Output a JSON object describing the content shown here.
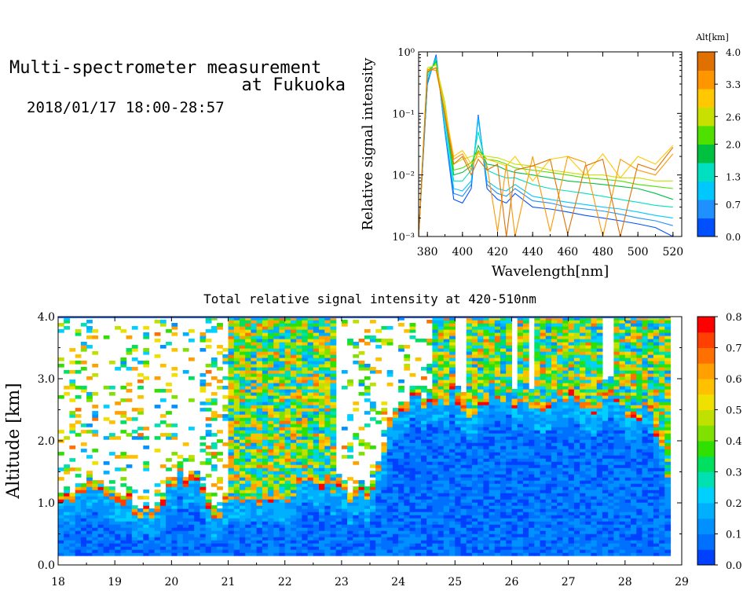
{
  "header": {
    "title_line1": "Multi-spectrometer measurement",
    "title_line2": "at Fukuoka",
    "date_range": "2018/01/17 18:00-28:57"
  },
  "chart_data": [
    {
      "type": "line",
      "xlabel": "Wavelength[nm]",
      "ylabel": "Relative signal intensity",
      "xlim": [
        375,
        525
      ],
      "x_ticks": [
        "380",
        "400",
        "420",
        "440",
        "460",
        "480",
        "500",
        "520"
      ],
      "y_scale": "log",
      "ylim": [
        0.001,
        1
      ],
      "y_ticks": [
        "10⁻³",
        "10⁻²",
        "10⁻¹",
        "10⁰"
      ],
      "x": [
        375,
        380,
        385,
        390,
        395,
        400,
        405,
        409,
        414,
        420,
        425,
        430,
        440,
        450,
        460,
        470,
        480,
        490,
        500,
        510,
        520
      ],
      "series": [
        {
          "alt": 0.2,
          "color": "#0050ff",
          "values": [
            0.001,
            0.3,
            0.9,
            0.05,
            0.004,
            0.0035,
            0.006,
            0.095,
            0.006,
            0.004,
            0.0035,
            0.005,
            0.003,
            0.0028,
            0.0025,
            0.0022,
            0.002,
            0.0018,
            0.0016,
            0.0014,
            0.001
          ]
        },
        {
          "alt": 0.5,
          "color": "#1e90ff",
          "values": [
            0.001,
            0.32,
            0.85,
            0.05,
            0.005,
            0.0045,
            0.007,
            0.09,
            0.007,
            0.005,
            0.0045,
            0.006,
            0.0038,
            0.0035,
            0.003,
            0.0028,
            0.0026,
            0.0023,
            0.002,
            0.0018,
            0.0015
          ]
        },
        {
          "alt": 0.9,
          "color": "#00c8ff",
          "values": [
            0.001,
            0.35,
            0.8,
            0.06,
            0.006,
            0.0055,
            0.008,
            0.08,
            0.008,
            0.006,
            0.0055,
            0.007,
            0.0045,
            0.004,
            0.0036,
            0.0033,
            0.003,
            0.0028,
            0.0025,
            0.0022,
            0.002
          ]
        },
        {
          "alt": 1.4,
          "color": "#00e0c0",
          "values": [
            0.001,
            0.4,
            0.75,
            0.08,
            0.008,
            0.008,
            0.012,
            0.05,
            0.012,
            0.01,
            0.009,
            0.009,
            0.007,
            0.006,
            0.0055,
            0.005,
            0.0045,
            0.004,
            0.0036,
            0.0032,
            0.003
          ]
        },
        {
          "alt": 1.9,
          "color": "#00c040",
          "values": [
            0.001,
            0.45,
            0.7,
            0.1,
            0.01,
            0.011,
            0.014,
            0.03,
            0.015,
            0.014,
            0.012,
            0.011,
            0.01,
            0.009,
            0.008,
            0.0075,
            0.007,
            0.0065,
            0.006,
            0.005,
            0.004
          ]
        },
        {
          "alt": 2.4,
          "color": "#50e000",
          "values": [
            0.001,
            0.5,
            0.65,
            0.12,
            0.012,
            0.013,
            0.016,
            0.025,
            0.018,
            0.017,
            0.015,
            0.013,
            0.012,
            0.011,
            0.01,
            0.009,
            0.0085,
            0.008,
            0.007,
            0.0065,
            0.006
          ]
        },
        {
          "alt": 2.9,
          "color": "#c8e000",
          "values": [
            0.001,
            0.55,
            0.6,
            0.15,
            0.015,
            0.018,
            0.02,
            0.022,
            0.02,
            0.019,
            0.017,
            0.015,
            0.014,
            0.012,
            0.011,
            0.01,
            0.01,
            0.009,
            0.009,
            0.008,
            0.008
          ]
        },
        {
          "alt": 3.3,
          "color": "#ffc800",
          "values": [
            0.001,
            0.5,
            0.55,
            0.12,
            0.02,
            0.025,
            0.015,
            0.02,
            0.018,
            0.016,
            0.014,
            0.02,
            0.008,
            0.018,
            0.02,
            0.01,
            0.022,
            0.009,
            0.02,
            0.015,
            0.03
          ]
        },
        {
          "alt": 3.7,
          "color": "#ff9600",
          "values": [
            0.001,
            0.52,
            0.5,
            0.1,
            0.018,
            0.022,
            0.012,
            0.024,
            0.014,
            0.0012,
            0.015,
            0.001,
            0.02,
            0.0012,
            0.02,
            0.016,
            0.001,
            0.018,
            0.012,
            0.01,
            0.022
          ]
        },
        {
          "alt": 4.0,
          "color": "#e07000",
          "values": [
            0.001,
            0.48,
            0.55,
            0.09,
            0.015,
            0.02,
            0.01,
            0.018,
            0.012,
            0.015,
            0.001,
            0.012,
            0.014,
            0.018,
            0.0011,
            0.014,
            0.018,
            0.001,
            0.015,
            0.012,
            0.028
          ]
        }
      ],
      "colorbar": {
        "label": "Alt[km]",
        "range": [
          0.0,
          4.0
        ],
        "tick_labels": [
          "0.0",
          "0.7",
          "1.3",
          "2.0",
          "2.6",
          "3.3",
          "4.0"
        ],
        "colors": [
          "#0050ff",
          "#1e90ff",
          "#00c8ff",
          "#00e0c0",
          "#00c040",
          "#50e000",
          "#c8e000",
          "#ffc800",
          "#ff9600",
          "#e07000"
        ]
      }
    },
    {
      "type": "heatmap",
      "title": "Total relative signal intensity at 420-510nm",
      "xlabel": "",
      "ylabel": "Altitude [km]",
      "xlim": [
        18,
        29
      ],
      "ylim": [
        0.0,
        4.0
      ],
      "x_ticks": [
        "18",
        "19",
        "20",
        "21",
        "22",
        "23",
        "24",
        "25",
        "26",
        "27",
        "28",
        "29"
      ],
      "y_ticks": [
        "0.0",
        "1.0",
        "2.0",
        "3.0",
        "4.0"
      ],
      "data_x_range": [
        18.0,
        28.8
      ],
      "data_min_altitude": 0.15,
      "cloud_base_km": [
        0.95,
        1.1,
        1.2,
        1.1,
        0.85,
        0.8,
        1.4,
        1.3,
        0.7,
        1.1,
        1.0,
        0.9,
        1.2,
        1.3,
        1.2,
        1.05,
        1.2,
        2.4,
        2.6,
        2.5,
        2.7,
        2.4,
        2.8,
        2.6,
        2.5,
        2.6,
        2.7,
        2.4,
        2.8,
        2.3,
        2.5,
        1.3
      ],
      "colorbar": {
        "range": [
          0.0,
          0.8
        ],
        "tick_labels": [
          "0.0",
          "0.1",
          "0.2",
          "0.3",
          "0.4",
          "0.5",
          "0.6",
          "0.7",
          "0.8"
        ],
        "colors": [
          "#0040ff",
          "#0070ff",
          "#0090ff",
          "#00b0ff",
          "#00d0ff",
          "#00e0b0",
          "#00e060",
          "#30e000",
          "#80e000",
          "#c0e000",
          "#f0e000",
          "#ffc000",
          "#ffa000",
          "#ff7000",
          "#ff4000",
          "#ff0000"
        ]
      }
    }
  ]
}
